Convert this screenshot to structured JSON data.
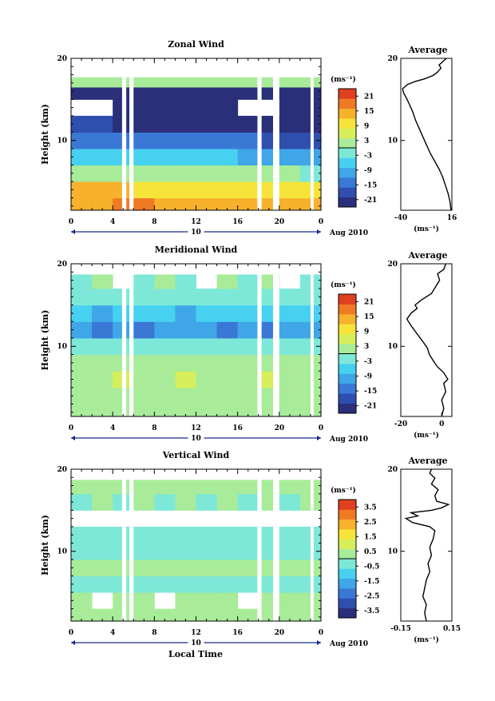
{
  "panels": [
    {
      "id": "zonal",
      "title": "Zonal Wind",
      "ylabel": "Height (km)",
      "y_ticks": [
        "20",
        "10"
      ],
      "x_ticks": [
        "0",
        "4",
        "8",
        "12",
        "16",
        "20",
        "0"
      ],
      "date_day": "10",
      "date_month": "Aug 2010",
      "unit": "(ms⁻¹)",
      "colorbar_ticks": [
        "21",
        "15",
        "9",
        "3",
        "-3",
        "-9",
        "-15",
        "-21"
      ],
      "avg_title": "Average",
      "avg_x_ticks": [
        "-40",
        "16"
      ],
      "avg_xlabel": "(ms⁻¹)",
      "avg_y_ticks": [
        "20",
        "10"
      ]
    },
    {
      "id": "meridional",
      "title": "Meridional Wind",
      "ylabel": "Height (km)",
      "y_ticks": [
        "20",
        "10"
      ],
      "x_ticks": [
        "0",
        "4",
        "8",
        "12",
        "16",
        "20",
        "0"
      ],
      "date_day": "10",
      "date_month": "Aug 2010",
      "unit": "(ms⁻¹)",
      "colorbar_ticks": [
        "21",
        "15",
        "9",
        "3",
        "-3",
        "-9",
        "-15",
        "-21"
      ],
      "avg_title": "Average",
      "avg_x_ticks": [
        "-20",
        "0"
      ],
      "avg_xlabel": "(ms⁻¹)",
      "avg_y_ticks": [
        "20",
        "10"
      ]
    },
    {
      "id": "vertical",
      "title": "Vertical Wind",
      "ylabel": "Height (km)",
      "y_ticks": [
        "20",
        "10"
      ],
      "x_ticks": [
        "0",
        "4",
        "8",
        "12",
        "16",
        "20",
        "0"
      ],
      "date_day": "10",
      "date_month": "Aug 2010",
      "unit": "(ms⁻¹)",
      "colorbar_ticks": [
        "3.5",
        "2.5",
        "1.5",
        "0.5",
        "-0.5",
        "-1.5",
        "-2.5",
        "-3.5"
      ],
      "avg_title": "Average",
      "avg_x_ticks": [
        "-0.15",
        "0.15"
      ],
      "avg_xlabel": "(ms⁻¹)",
      "avg_y_ticks": [
        "20",
        "10"
      ]
    }
  ],
  "xlabel": "Local Time",
  "colors": {
    "colormap": [
      "#2a2f7a",
      "#2f4fae",
      "#3a78d6",
      "#3fa6e8",
      "#47d1f0",
      "#7de8d8",
      "#a8ec9a",
      "#d6ee5a",
      "#f6e43a",
      "#f7b12d",
      "#f07a24",
      "#e0401f"
    ],
    "date_arrow": "#1a2a8a"
  },
  "chart_data": [
    {
      "type": "heatmap",
      "title": "Zonal Wind",
      "xlabel": "",
      "ylabel": "Height (km)",
      "x_unit": "Local Time (h)",
      "xlim": [
        0,
        24
      ],
      "ylim": [
        1.5,
        20
      ],
      "zlim": [
        -24,
        24
      ],
      "colorbar_unit": "(ms⁻¹)",
      "rows": [
        {
          "height": 2,
          "values": [
            15,
            15,
            16,
            16,
            15,
            15,
            14,
            14,
            13,
            13,
            12,
            12
          ]
        },
        {
          "height": 4,
          "values": [
            12,
            12,
            12,
            11,
            11,
            10,
            10,
            10,
            9,
            9,
            9,
            8
          ]
        },
        {
          "height": 6,
          "values": [
            3,
            3,
            2,
            2,
            2,
            1,
            1,
            1,
            0,
            0,
            0,
            -1
          ]
        },
        {
          "height": 8,
          "values": [
            -6,
            -6,
            -7,
            -7,
            -7,
            -8,
            -8,
            -8,
            -9,
            -9,
            -9,
            -10
          ]
        },
        {
          "height": 10,
          "values": [
            -13,
            -13,
            -14,
            -14,
            -15,
            -15,
            -15,
            -16,
            -16,
            -17,
            -17,
            -18
          ]
        },
        {
          "height": 12,
          "values": [
            -20,
            -20,
            -21,
            -21,
            -21,
            -22,
            -22,
            -22,
            -22,
            -22,
            -22,
            -23
          ]
        },
        {
          "height": 14,
          "values": [
            null,
            null,
            -22,
            -22,
            -23,
            -23,
            -23,
            -23,
            null,
            null,
            -23,
            -23
          ]
        },
        {
          "height": 16,
          "values": [
            -23,
            -23,
            -23,
            -23,
            -23,
            -22,
            -22,
            -22,
            -22,
            -22,
            -22,
            -22
          ]
        },
        {
          "height": 17,
          "values": [
            2,
            3,
            3,
            2,
            1,
            2,
            2,
            3,
            1,
            2,
            2,
            3
          ]
        }
      ],
      "data_gaps_hours": [
        [
          4.9,
          5.3
        ],
        [
          5.6,
          6.0
        ],
        [
          17.9,
          18.3
        ],
        [
          19.4,
          20.0
        ],
        [
          23.0,
          23.3
        ]
      ]
    },
    {
      "type": "line",
      "title": "Average",
      "xlabel": "(ms⁻¹)",
      "ylabel": "",
      "xlim": [
        -40,
        16
      ],
      "ylim": [
        1.5,
        20
      ],
      "series": [
        {
          "points": [
            [
              15,
              1.5
            ],
            [
              14,
              2.5
            ],
            [
              12,
              3.5
            ],
            [
              9,
              4.5
            ],
            [
              6,
              5.5
            ],
            [
              2,
              6.5
            ],
            [
              -3,
              7.5
            ],
            [
              -8,
              8.5
            ],
            [
              -12,
              9.5
            ],
            [
              -16,
              10.5
            ],
            [
              -20,
              11.5
            ],
            [
              -24,
              12.5
            ],
            [
              -27,
              13.5
            ],
            [
              -31,
              14.5
            ],
            [
              -34,
              15.2
            ],
            [
              -37,
              15.8
            ],
            [
              -38,
              16.3
            ],
            [
              -33,
              16.8
            ],
            [
              -24,
              17.2
            ],
            [
              -14,
              17.5
            ],
            [
              -5,
              17.9
            ],
            [
              0,
              18.3
            ],
            [
              4,
              18.8
            ],
            [
              2,
              19.2
            ],
            [
              6,
              19.6
            ],
            [
              10,
              20
            ]
          ]
        }
      ]
    },
    {
      "type": "heatmap",
      "title": "Meridional Wind",
      "xlabel": "",
      "ylabel": "Height (km)",
      "x_unit": "Local Time (h)",
      "xlim": [
        0,
        24
      ],
      "ylim": [
        1.5,
        20
      ],
      "zlim": [
        -24,
        24
      ],
      "colorbar_unit": "(ms⁻¹)",
      "rows": [
        {
          "height": 2,
          "values": [
            1,
            2,
            1,
            0,
            1,
            2,
            1,
            0,
            1,
            1,
            0,
            1
          ]
        },
        {
          "height": 4,
          "values": [
            2,
            3,
            2,
            3,
            2,
            3,
            2,
            2,
            3,
            2,
            2,
            3
          ]
        },
        {
          "height": 6,
          "values": [
            3,
            3,
            4,
            3,
            3,
            4,
            3,
            3,
            3,
            4,
            3,
            3
          ]
        },
        {
          "height": 8,
          "values": [
            1,
            2,
            1,
            2,
            1,
            1,
            2,
            1,
            1,
            2,
            1,
            1
          ]
        },
        {
          "height": 10,
          "values": [
            -4,
            -3,
            -4,
            -3,
            -4,
            -3,
            -4,
            -3,
            -3,
            -4,
            -3,
            -4
          ]
        },
        {
          "height": 12,
          "values": [
            -12,
            -13,
            -12,
            -13,
            -12,
            -11,
            -12,
            -13,
            -12,
            -13,
            -12,
            -12
          ]
        },
        {
          "height": 14,
          "values": [
            -8,
            -9,
            -8,
            -7,
            -8,
            -9,
            -8,
            -7,
            -8,
            -8,
            -7,
            -8
          ]
        },
        {
          "height": 16,
          "values": [
            -2,
            -1,
            -2,
            -1,
            -2,
            -1,
            -2,
            -1,
            -2,
            -1,
            -2,
            -1
          ]
        },
        {
          "height": 18,
          "values": [
            -1,
            0,
            null,
            -1,
            0,
            -1,
            null,
            0,
            -1,
            0,
            null,
            -1
          ]
        }
      ],
      "data_gaps_hours": [
        [
          4.9,
          5.3
        ],
        [
          5.6,
          6.0
        ],
        [
          17.9,
          18.3
        ],
        [
          19.4,
          20.0
        ],
        [
          23.0,
          23.3
        ]
      ]
    },
    {
      "type": "line",
      "title": "Average",
      "xlabel": "(ms⁻¹)",
      "ylabel": "",
      "xlim": [
        -20,
        5
      ],
      "ylim": [
        1.5,
        20
      ],
      "series": [
        {
          "points": [
            [
              0,
              1.5
            ],
            [
              1,
              2.5
            ],
            [
              0,
              3.5
            ],
            [
              2,
              4.5
            ],
            [
              1,
              5.5
            ],
            [
              3,
              6.0
            ],
            [
              1,
              6.8
            ],
            [
              -2,
              7.5
            ],
            [
              -4,
              8.2
            ],
            [
              -6,
              9.0
            ],
            [
              -7,
              9.8
            ],
            [
              -9,
              10.5
            ],
            [
              -12,
              11.5
            ],
            [
              -15,
              12.5
            ],
            [
              -17,
              13.3
            ],
            [
              -15,
              14.0
            ],
            [
              -12,
              14.6
            ],
            [
              -13,
              15.0
            ],
            [
              -10,
              15.6
            ],
            [
              -5,
              16.4
            ],
            [
              -3,
              17.2
            ],
            [
              -1,
              18.0
            ],
            [
              -2,
              18.8
            ],
            [
              1,
              19.3
            ],
            [
              2,
              20
            ]
          ]
        }
      ]
    },
    {
      "type": "heatmap",
      "title": "Vertical Wind",
      "xlabel": "Local Time",
      "ylabel": "Height (km)",
      "x_unit": "Local Time (h)",
      "xlim": [
        0,
        24
      ],
      "ylim": [
        1.5,
        20
      ],
      "zlim": [
        -4,
        4
      ],
      "colorbar_unit": "(ms⁻¹)",
      "rows": [
        {
          "height": 2,
          "values": [
            0.0,
            0.0,
            0.0,
            0.0,
            0.0,
            0.0,
            0.0,
            0.0,
            0.0,
            0.0,
            0.0,
            0.0
          ]
        },
        {
          "height": 4,
          "values": [
            0.0,
            null,
            0.0,
            0.0,
            null,
            0.0,
            0.0,
            0.0,
            null,
            0.0,
            0.0,
            0.0
          ]
        },
        {
          "height": 6,
          "values": [
            -0.2,
            -0.1,
            -0.2,
            -0.1,
            -0.2,
            -0.1,
            -0.2,
            -0.1,
            -0.2,
            -0.1,
            -0.2,
            -0.1
          ]
        },
        {
          "height": 8,
          "values": [
            0.0,
            0.0,
            0.0,
            0.0,
            0.0,
            0.0,
            0.0,
            0.0,
            0.0,
            0.0,
            0.0,
            0.0
          ]
        },
        {
          "height": 10,
          "values": [
            -0.3,
            -0.2,
            -0.3,
            -0.3,
            -0.2,
            -0.3,
            -0.3,
            -0.2,
            -0.3,
            -0.2,
            -0.3,
            -0.3
          ]
        },
        {
          "height": 12,
          "values": [
            -0.3,
            -0.3,
            -0.3,
            -0.3,
            -0.3,
            -0.3,
            -0.3,
            -0.3,
            -0.3,
            -0.3,
            -0.3,
            -0.3
          ]
        },
        {
          "height": 14,
          "values": [
            null,
            null,
            null,
            null,
            null,
            null,
            null,
            null,
            null,
            null,
            null,
            null
          ]
        },
        {
          "height": 16,
          "values": [
            -0.1,
            0.0,
            -0.1,
            0.0,
            -0.1,
            0.0,
            -0.1,
            0.0,
            -0.1,
            0.0,
            -0.1,
            0.0
          ]
        },
        {
          "height": 18,
          "values": [
            0.0,
            0.0,
            0.0,
            0.0,
            0.0,
            0.0,
            0.0,
            0.0,
            0.0,
            0.0,
            0.0,
            0.0
          ]
        }
      ],
      "data_gaps_hours": [
        [
          4.9,
          5.3
        ],
        [
          5.6,
          6.0
        ],
        [
          17.9,
          18.3
        ],
        [
          19.4,
          20.0
        ],
        [
          23.0,
          23.3
        ]
      ]
    },
    {
      "type": "line",
      "title": "Average",
      "xlabel": "(ms⁻¹)",
      "ylabel": "",
      "xlim": [
        -0.15,
        0.15
      ],
      "ylim": [
        1.5,
        20
      ],
      "series": [
        {
          "points": [
            [
              0.0,
              1.5
            ],
            [
              -0.01,
              2.5
            ],
            [
              0.0,
              3.5
            ],
            [
              -0.02,
              4.5
            ],
            [
              -0.01,
              5.5
            ],
            [
              0.0,
              6.5
            ],
            [
              0.02,
              7.5
            ],
            [
              0.01,
              8.5
            ],
            [
              0.03,
              9.5
            ],
            [
              0.02,
              10.5
            ],
            [
              0.04,
              11.5
            ],
            [
              0.05,
              12.5
            ],
            [
              0.02,
              13.0
            ],
            [
              -0.08,
              13.5
            ],
            [
              -0.12,
              14.0
            ],
            [
              -0.05,
              14.3
            ],
            [
              -0.09,
              14.7
            ],
            [
              0.03,
              15.0
            ],
            [
              0.09,
              15.3
            ],
            [
              0.13,
              15.7
            ],
            [
              0.06,
              16.1
            ],
            [
              0.05,
              16.8
            ],
            [
              0.07,
              17.5
            ],
            [
              0.03,
              18.2
            ],
            [
              0.05,
              18.9
            ],
            [
              0.02,
              19.5
            ],
            [
              0.03,
              20
            ]
          ]
        }
      ]
    }
  ]
}
